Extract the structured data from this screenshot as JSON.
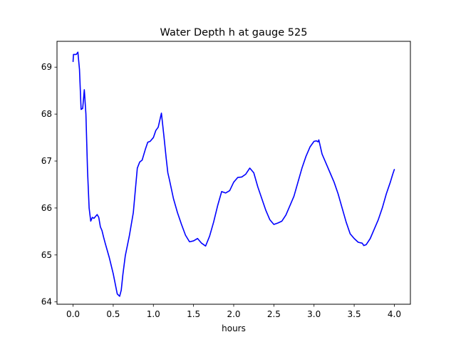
{
  "chart_data": {
    "type": "line",
    "title": "Water Depth h at gauge 525",
    "xlabel": "hours",
    "ylabel": "",
    "xlim": [
      -0.2,
      4.2
    ],
    "ylim": [
      63.95,
      69.55
    ],
    "xticks": [
      0.0,
      0.5,
      1.0,
      1.5,
      2.0,
      2.5,
      3.0,
      3.5,
      4.0
    ],
    "xtick_labels": [
      "0.0",
      "0.5",
      "1.0",
      "1.5",
      "2.0",
      "2.5",
      "3.0",
      "3.5",
      "4.0"
    ],
    "yticks": [
      64,
      65,
      66,
      67,
      68,
      69
    ],
    "ytick_labels": [
      "64",
      "65",
      "66",
      "67",
      "68",
      "69"
    ],
    "grid": false,
    "line_color": "#0000ff",
    "series": [
      {
        "x": [
          0.0,
          0.005,
          0.01,
          0.04,
          0.06,
          0.08,
          0.1,
          0.12,
          0.14,
          0.16,
          0.18,
          0.2,
          0.22,
          0.24,
          0.26,
          0.28,
          0.3,
          0.32,
          0.34,
          0.36,
          0.38,
          0.4,
          0.45,
          0.5,
          0.55,
          0.58,
          0.6,
          0.62,
          0.65,
          0.7,
          0.75,
          0.8,
          0.83,
          0.86,
          0.9,
          0.93,
          0.96,
          1.0,
          1.03,
          1.06,
          1.1,
          1.13,
          1.16,
          1.18,
          1.2,
          1.25,
          1.3,
          1.35,
          1.4,
          1.45,
          1.5,
          1.55,
          1.6,
          1.65,
          1.7,
          1.75,
          1.8,
          1.85,
          1.9,
          1.95,
          2.0,
          2.05,
          2.1,
          2.15,
          2.2,
          2.25,
          2.3,
          2.35,
          2.4,
          2.45,
          2.5,
          2.55,
          2.6,
          2.65,
          2.7,
          2.75,
          2.8,
          2.85,
          2.9,
          2.95,
          3.0,
          3.03,
          3.05,
          3.06,
          3.08,
          3.1,
          3.15,
          3.2,
          3.25,
          3.3,
          3.35,
          3.4,
          3.45,
          3.5,
          3.55,
          3.6,
          3.62,
          3.65,
          3.7,
          3.75,
          3.8,
          3.85,
          3.9,
          3.95,
          3.98,
          4.0
        ],
        "y": [
          69.12,
          69.27,
          69.27,
          69.27,
          69.32,
          68.95,
          68.1,
          68.12,
          68.52,
          68.0,
          66.8,
          66.0,
          65.72,
          65.8,
          65.78,
          65.82,
          65.86,
          65.8,
          65.6,
          65.52,
          65.38,
          65.25,
          64.95,
          64.6,
          64.17,
          64.12,
          64.25,
          64.58,
          64.98,
          65.4,
          65.9,
          66.85,
          66.98,
          67.02,
          67.25,
          67.4,
          67.42,
          67.5,
          67.65,
          67.72,
          68.02,
          67.55,
          67.05,
          66.75,
          66.6,
          66.2,
          65.9,
          65.65,
          65.42,
          65.28,
          65.3,
          65.35,
          65.25,
          65.19,
          65.4,
          65.7,
          66.05,
          66.35,
          66.32,
          66.37,
          66.55,
          66.65,
          66.66,
          66.72,
          66.85,
          66.75,
          66.45,
          66.2,
          65.95,
          65.75,
          65.65,
          65.68,
          65.72,
          65.85,
          66.05,
          66.25,
          66.55,
          66.85,
          67.1,
          67.3,
          67.42,
          67.43,
          67.41,
          67.45,
          67.3,
          67.15,
          66.95,
          66.75,
          66.55,
          66.3,
          66.0,
          65.7,
          65.45,
          65.35,
          65.27,
          65.25,
          65.2,
          65.22,
          65.35,
          65.55,
          65.75,
          66.0,
          66.3,
          66.55,
          66.72,
          66.82
        ]
      }
    ]
  }
}
